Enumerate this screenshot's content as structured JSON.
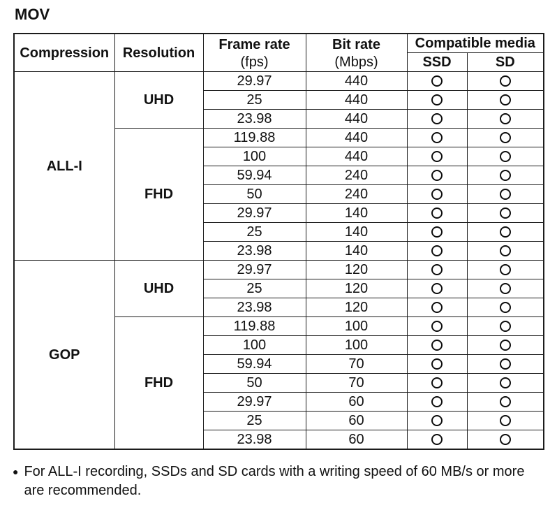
{
  "page_title": "MOV",
  "table": {
    "headers": {
      "compression": "Compression",
      "resolution": "Resolution",
      "frame_rate": "Frame rate",
      "frame_rate_unit": "(fps)",
      "bit_rate": "Bit rate",
      "bit_rate_unit": "(Mbps)",
      "compatible_media": "Compatible media",
      "ssd": "SSD",
      "sd": "SD"
    },
    "compatible_yes_mark": "○",
    "rows": [
      {
        "compression": "ALL-I",
        "compression_span": 10,
        "resolution": "UHD",
        "resolution_span": 3,
        "fps": "29.97",
        "bitrate": "440",
        "ssd": "○",
        "sd": "○"
      },
      {
        "fps": "25",
        "bitrate": "440",
        "ssd": "○",
        "sd": "○"
      },
      {
        "fps": "23.98",
        "bitrate": "440",
        "ssd": "○",
        "sd": "○"
      },
      {
        "resolution": "FHD",
        "resolution_span": 7,
        "fps": "119.88",
        "bitrate": "440",
        "ssd": "○",
        "sd": "○"
      },
      {
        "fps": "100",
        "bitrate": "440",
        "ssd": "○",
        "sd": "○"
      },
      {
        "fps": "59.94",
        "bitrate": "240",
        "ssd": "○",
        "sd": "○"
      },
      {
        "fps": "50",
        "bitrate": "240",
        "ssd": "○",
        "sd": "○"
      },
      {
        "fps": "29.97",
        "bitrate": "140",
        "ssd": "○",
        "sd": "○"
      },
      {
        "fps": "25",
        "bitrate": "140",
        "ssd": "○",
        "sd": "○"
      },
      {
        "fps": "23.98",
        "bitrate": "140",
        "ssd": "○",
        "sd": "○"
      },
      {
        "compression": "GOP",
        "compression_span": 10,
        "resolution": "UHD",
        "resolution_span": 3,
        "fps": "29.97",
        "bitrate": "120",
        "ssd": "○",
        "sd": "○"
      },
      {
        "fps": "25",
        "bitrate": "120",
        "ssd": "○",
        "sd": "○"
      },
      {
        "fps": "23.98",
        "bitrate": "120",
        "ssd": "○",
        "sd": "○"
      },
      {
        "resolution": "FHD",
        "resolution_span": 7,
        "fps": "119.88",
        "bitrate": "100",
        "ssd": "○",
        "sd": "○"
      },
      {
        "fps": "100",
        "bitrate": "100",
        "ssd": "○",
        "sd": "○"
      },
      {
        "fps": "59.94",
        "bitrate": "70",
        "ssd": "○",
        "sd": "○"
      },
      {
        "fps": "50",
        "bitrate": "70",
        "ssd": "○",
        "sd": "○"
      },
      {
        "fps": "29.97",
        "bitrate": "60",
        "ssd": "○",
        "sd": "○"
      },
      {
        "fps": "25",
        "bitrate": "60",
        "ssd": "○",
        "sd": "○"
      },
      {
        "fps": "23.98",
        "bitrate": "60",
        "ssd": "○",
        "sd": "○"
      }
    ]
  },
  "note": {
    "bullet": "●",
    "text": "For ALL-I recording, SSDs and SD cards with a writing speed of 60 MB/s or more are recommended."
  },
  "colors": {
    "text": "#111111",
    "border": "#1c1c1c",
    "background": "#ffffff"
  }
}
